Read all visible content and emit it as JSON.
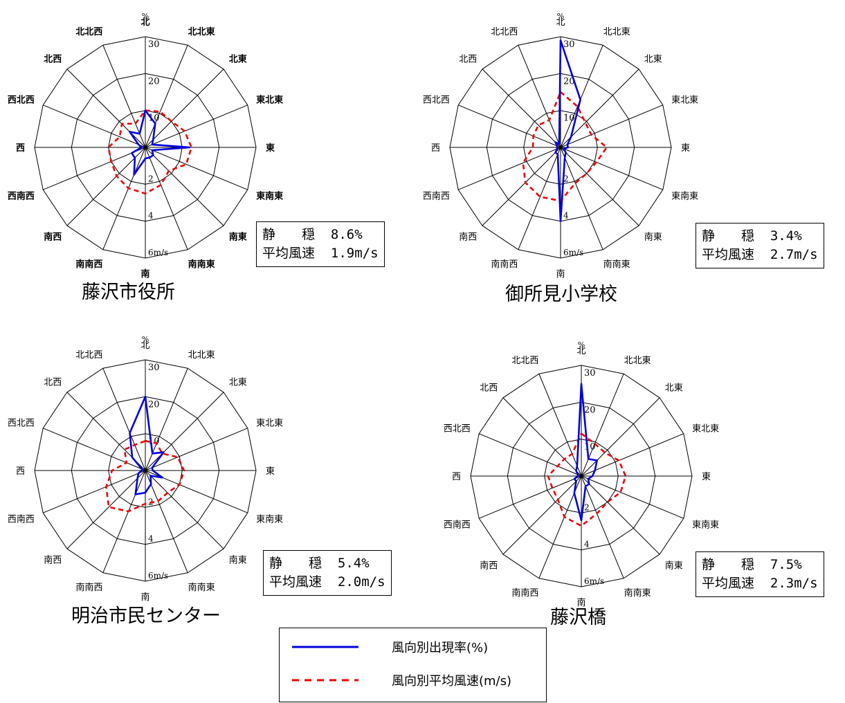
{
  "directions": [
    "北",
    "北北東",
    "北東",
    "東北東",
    "東",
    "東南東",
    "南東",
    "南南東",
    "南",
    "南南西",
    "南西",
    "西南西",
    "西",
    "西北西",
    "北西",
    "北北西"
  ],
  "scale": {
    "freq_unit": "%",
    "freq_max": 30,
    "freq_ticks": [
      "10",
      "20",
      "30"
    ],
    "speed_unit": "m/s",
    "speed_max": 6,
    "speed_ticks": [
      "2",
      "4",
      "6m/s"
    ]
  },
  "colors": {
    "frequency": "#0000dd",
    "speed": "#ee0000",
    "grid": "#000000"
  },
  "legend": {
    "frequency_label": "風向別出現率(%)",
    "speed_label": "風向別平均風速(m/s)"
  },
  "chart_data": [
    {
      "type": "polar-rose",
      "caption": "藤沢市役所",
      "calm_label": "静　　穏",
      "calm": "8.6%",
      "avg_label": "平均風速",
      "avg": "1.9m/s",
      "frequency": [
        10,
        7,
        3,
        2,
        12,
        2,
        3,
        3,
        3,
        8,
        4,
        4,
        1,
        2,
        6,
        4
      ],
      "speed": [
        2.0,
        2.1,
        2.0,
        2.3,
        2.5,
        2.4,
        1.8,
        2.2,
        2.5,
        2.4,
        2.2,
        2.0,
        2.0,
        1.5,
        1.8,
        1.4
      ]
    },
    {
      "type": "polar-rose",
      "caption": "御所見小学校",
      "calm_label": "静　　穏",
      "calm": "3.4%",
      "avg_label": "平均風速",
      "avg": "2.7m/s",
      "frequency": [
        29,
        14,
        4,
        2,
        2,
        1,
        2,
        3,
        20,
        2,
        2,
        1,
        1,
        1,
        2,
        1
      ],
      "speed": [
        3.0,
        2.4,
        1.9,
        1.8,
        2.5,
        2.1,
        2.0,
        2.1,
        2.9,
        2.9,
        2.7,
        2.2,
        1.5,
        1.6,
        1.7,
        1.6
      ]
    },
    {
      "type": "polar-rose",
      "caption": "明治市民センター",
      "calm_label": "静　　穏",
      "calm": "5.4%",
      "avg_label": "平均風速",
      "avg": "2.0m/s",
      "frequency": [
        20,
        5,
        7,
        2,
        2,
        5,
        2,
        4,
        6,
        7,
        3,
        2,
        1,
        1,
        5,
        11
      ],
      "speed": [
        1.6,
        1.6,
        1.3,
        1.9,
        2.1,
        2.0,
        1.7,
        1.8,
        1.8,
        2.4,
        2.8,
        2.3,
        1.8,
        1.1,
        1.6,
        1.5
      ]
    },
    {
      "type": "polar-rose",
      "caption": "藤沢橋",
      "calm_label": "静　　穏",
      "calm": "7.5%",
      "avg_label": "平均風速",
      "avg": "2.3m/s",
      "frequency": [
        25,
        5,
        6,
        4,
        3,
        2,
        3,
        3,
        12,
        5,
        2,
        2,
        1,
        1,
        2,
        3
      ],
      "speed": [
        2.3,
        1.9,
        1.8,
        2.2,
        2.4,
        2.3,
        2.0,
        2.2,
        2.7,
        2.4,
        1.8,
        1.7,
        1.8,
        1.4,
        1.3,
        1.3
      ]
    }
  ]
}
